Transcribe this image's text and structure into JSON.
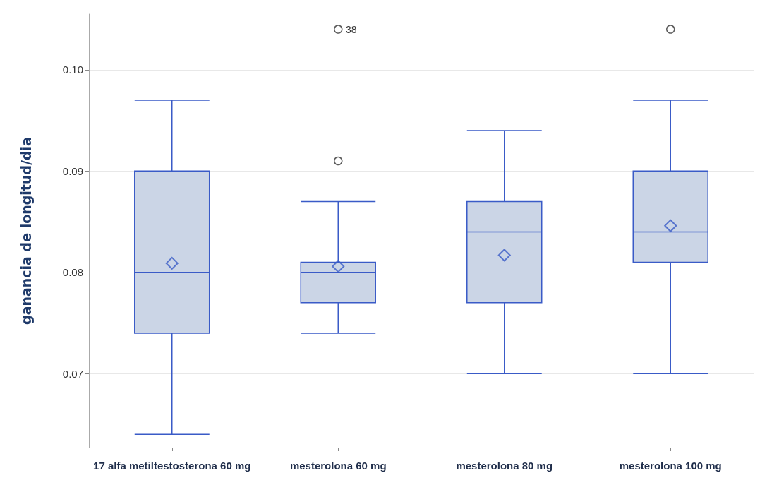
{
  "chart_data": {
    "type": "box",
    "ylabel": "ganancia de longitud/dia",
    "categories": [
      "17 alfa metiltestosterona 60 mg",
      "mesterolona 60 mg",
      "mesterolona 80 mg",
      "mesterolona 100 mg"
    ],
    "color": "#3a5bc7",
    "boxes": [
      {
        "low": 0.064,
        "q1": 0.074,
        "median": 0.08,
        "q3": 0.09,
        "high": 0.097,
        "mean": 0.0809
      },
      {
        "low": 0.074,
        "q1": 0.077,
        "median": 0.08,
        "q3": 0.081,
        "high": 0.087,
        "mean": 0.0806,
        "outliers": [
          0.091,
          0.104
        ]
      },
      {
        "low": 0.07,
        "q1": 0.077,
        "median": 0.084,
        "q3": 0.087,
        "high": 0.094,
        "mean": 0.0817
      },
      {
        "low": 0.07,
        "q1": 0.081,
        "median": 0.084,
        "q3": 0.09,
        "high": 0.097,
        "mean": 0.0846,
        "outliers": [
          0.104
        ]
      }
    ],
    "ylim": [
      0.0627,
      0.1055
    ],
    "yticks": [
      0.07,
      0.08,
      0.09,
      {
        "value": 0.1,
        "label": "0.10"
      }
    ],
    "grid": "y",
    "annotations": [
      "38"
    ]
  }
}
